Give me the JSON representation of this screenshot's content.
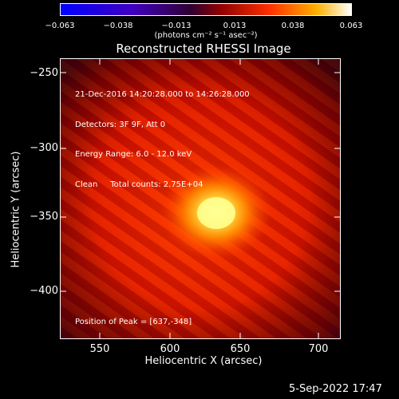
{
  "colorbar": {
    "ticks": [
      "−0.063",
      "−0.038",
      "−0.013",
      "0.013",
      "0.038",
      "0.063"
    ],
    "units": "(photons cm⁻² s⁻¹ asec⁻²)"
  },
  "plot": {
    "title": "Reconstructed RHESSI Image",
    "info_lines": [
      "21-Dec-2016 14:20:28.000 to 14:26:28.000",
      "Detectors: 3F 9F, Att 0",
      "Energy Range: 6.0 - 12.0 keV",
      "Clean     Total counts: 2.75E+04"
    ],
    "peak_text": "Position of Peak = [637,-348]",
    "xlabel": "Heliocentric X (arcsec)",
    "ylabel": "Heliocentric Y (arcsec)",
    "xticks": [
      "550",
      "600",
      "650",
      "700"
    ],
    "yticks": [
      "−250",
      "−300",
      "−350",
      "−400"
    ]
  },
  "timestamp": "5-Sep-2022 17:47",
  "colors": {
    "background": "#000000",
    "image_core": "#ffff80",
    "image_mid": "#ff3000",
    "image_edge": "#900000"
  }
}
